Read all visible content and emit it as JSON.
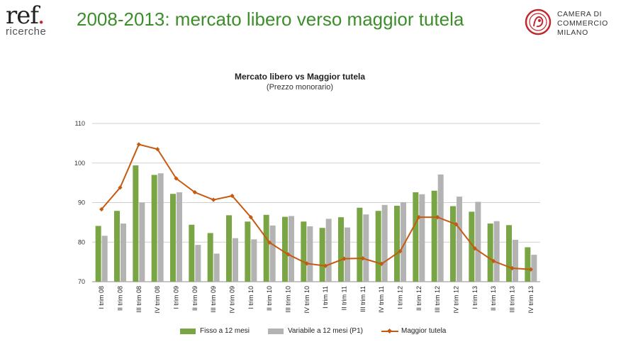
{
  "header": {
    "logo_main": "ref",
    "logo_sub": "ricerche",
    "title": "2008-2013: mercato libero verso maggior tutela",
    "chamber_lines": [
      "CAMERA DI",
      "COMMERCIO",
      "MILANO"
    ]
  },
  "colors": {
    "title_green": "#3b8e2a",
    "fisso": "#7aa544",
    "variabile": "#b3b3b3",
    "tutela": "#c55a11",
    "seal_red": "#c0282d"
  },
  "chart_data": {
    "type": "bar",
    "title": "Mercato libero vs Maggior tutela",
    "subtitle": "(Prezzo monorario)",
    "ylim": [
      70,
      110
    ],
    "yticks": [
      70,
      80,
      90,
      100,
      110
    ],
    "grid": true,
    "legend_position": "bottom",
    "categories": [
      "I trim 08",
      "II trim 08",
      "III trim 08",
      "IV trim 08",
      "I trim 09",
      "II trim 09",
      "III trim 09",
      "IV trim 09",
      "I trim 10",
      "II trim 10",
      "III trim 10",
      "IV trim 10",
      "I trim 11",
      "II trim 11",
      "III trim 11",
      "IV trim 11",
      "I trim 12",
      "II trim 12",
      "III trim 12",
      "IV trim 12",
      "I trim 13",
      "II trim 13",
      "III trim 13",
      "IV trim 13"
    ],
    "series": [
      {
        "name": "Fisso a 12 mesi",
        "type": "bar",
        "values": [
          84.1,
          87.9,
          99.4,
          97.0,
          92.2,
          84.4,
          82.3,
          86.8,
          85.2,
          86.9,
          86.4,
          85.2,
          83.6,
          86.3,
          88.7,
          87.9,
          89.2,
          92.6,
          93.0,
          89.1,
          87.7,
          84.7,
          84.3,
          78.7
        ]
      },
      {
        "name": "Variabile a 12 mesi (P1)",
        "type": "bar",
        "values": [
          81.6,
          84.7,
          90.0,
          97.4,
          92.6,
          79.3,
          77.1,
          81.0,
          80.7,
          84.2,
          86.6,
          84.0,
          85.9,
          83.7,
          87.0,
          89.4,
          90.1,
          92.1,
          97.1,
          91.5,
          90.2,
          85.3,
          80.6,
          76.8
        ]
      },
      {
        "name": "Maggior tutela",
        "type": "line",
        "values": [
          88.3,
          93.8,
          104.7,
          103.5,
          96.1,
          92.6,
          90.7,
          91.7,
          86.3,
          79.9,
          76.9,
          74.6,
          74.0,
          75.8,
          75.9,
          74.5,
          77.7,
          86.3,
          86.3,
          84.5,
          78.4,
          75.2,
          73.4,
          73.1
        ]
      }
    ]
  }
}
